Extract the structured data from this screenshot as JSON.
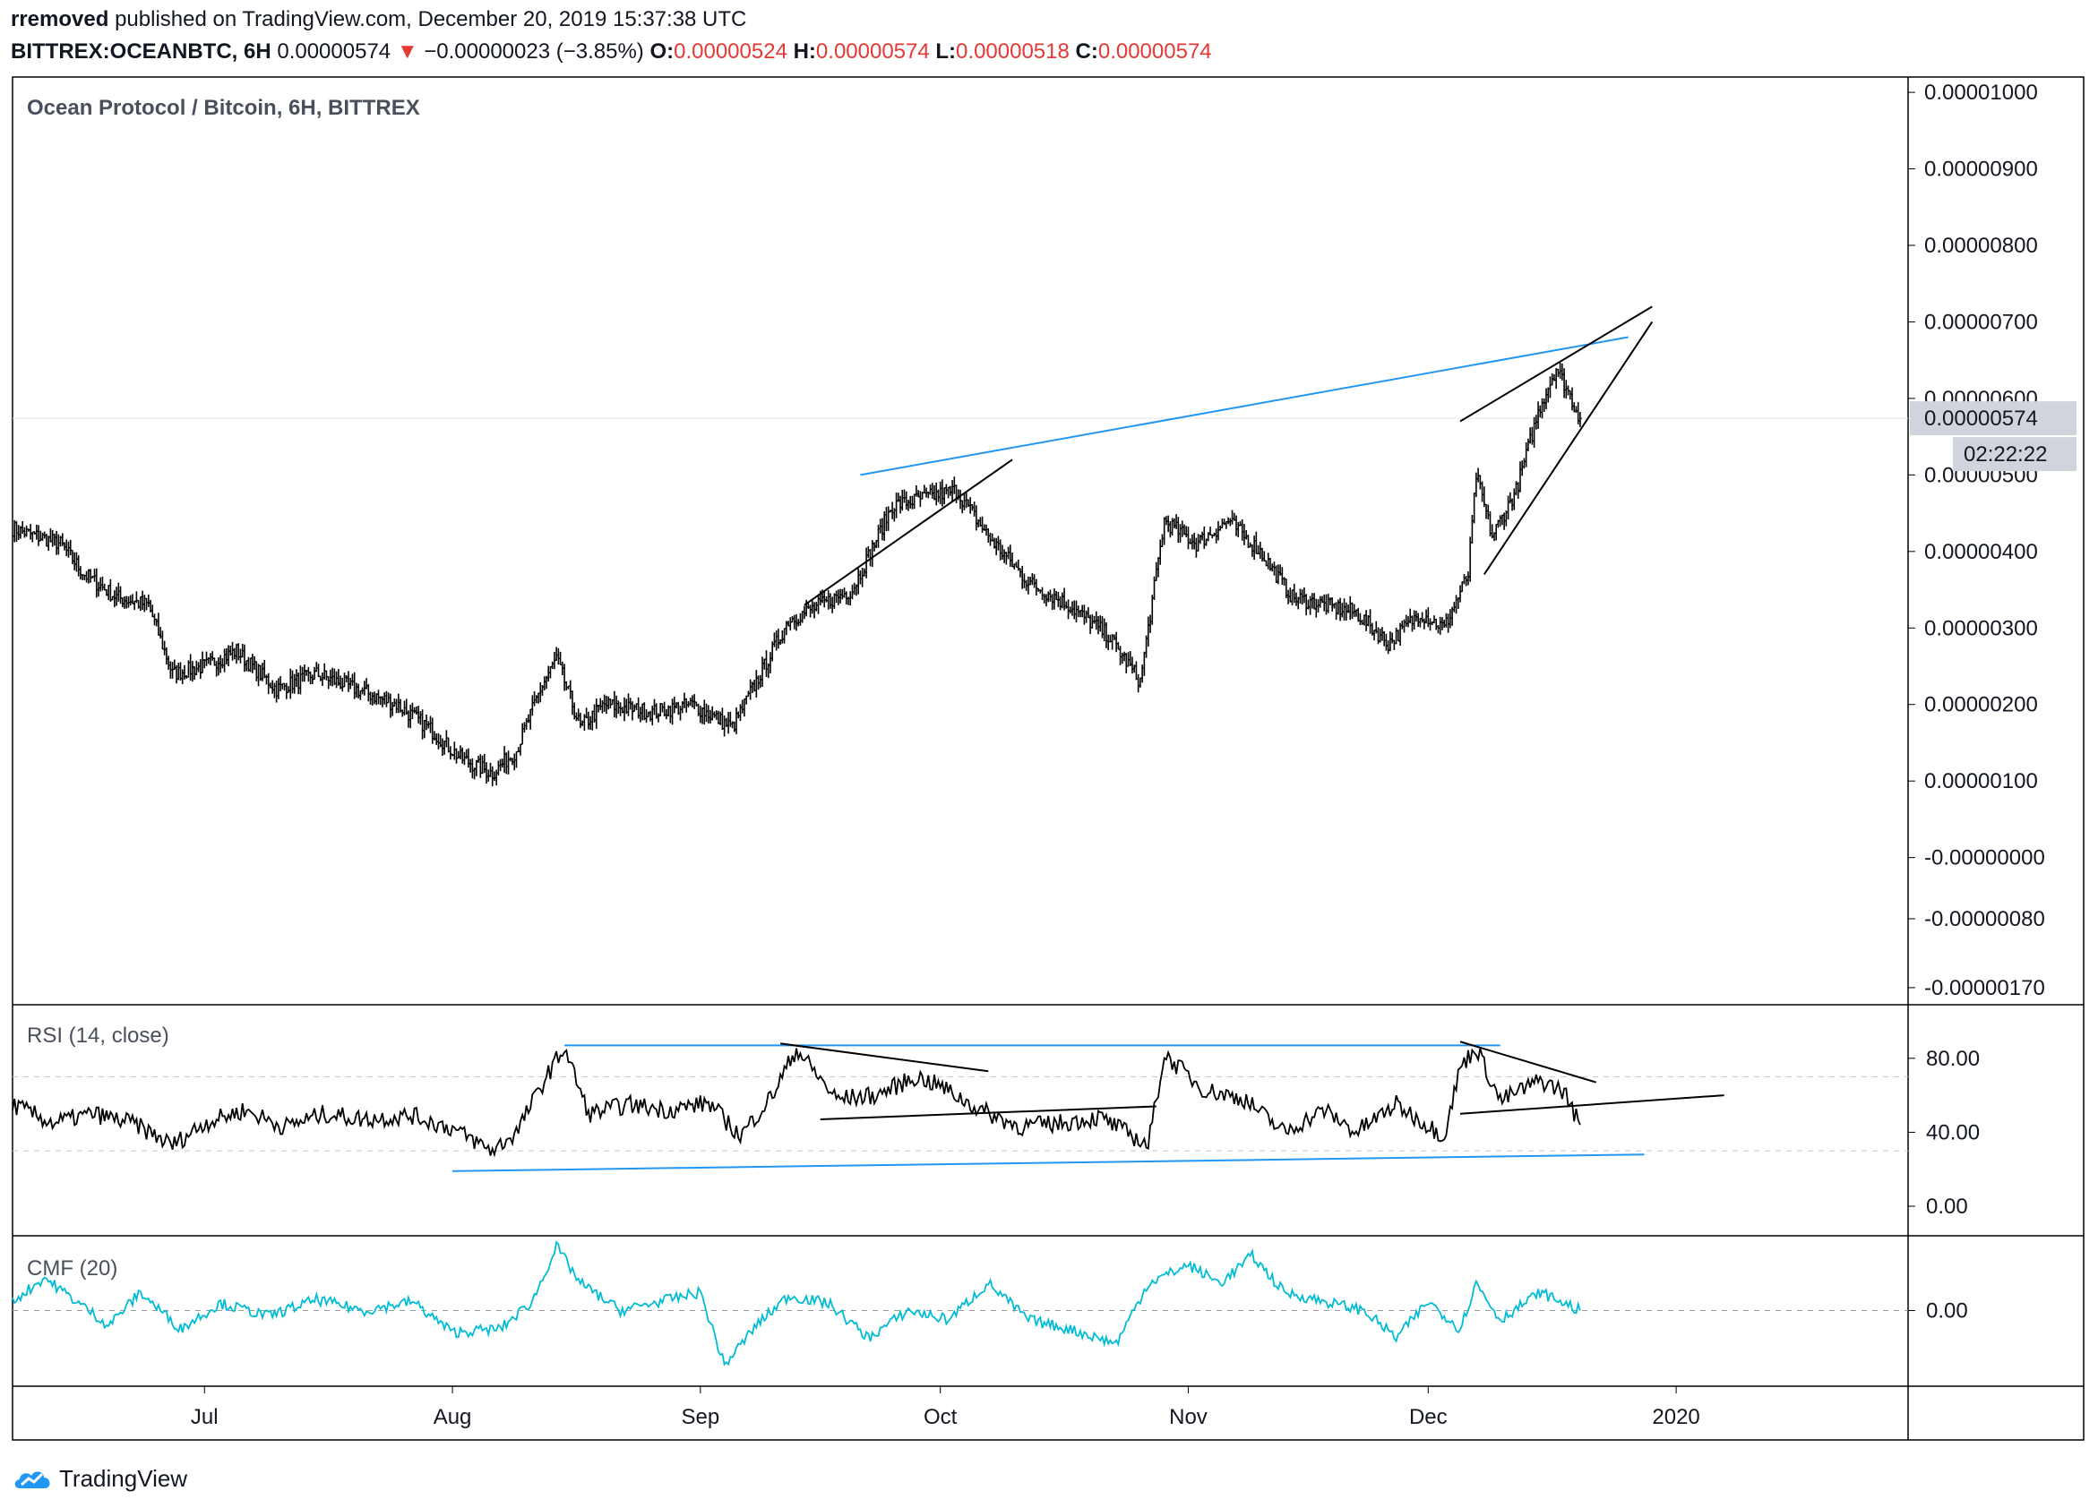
{
  "header": {
    "author": "rremoved",
    "published_text": "published on TradingView.com, December 20, 2019 15:37:38 UTC",
    "symbol": "BITTREX:OCEANBTC, 6H",
    "last": "0.00000574",
    "change": "−0.00000023 (−3.85%)",
    "o_label": "O:",
    "o_value": "0.00000524",
    "h_label": "H:",
    "h_value": "0.00000574",
    "l_label": "L:",
    "l_value": "0.00000518",
    "c_label": "C:",
    "c_value": "0.00000574"
  },
  "footer": {
    "brand": "TradingView"
  },
  "colors": {
    "candle": "#000000",
    "trendline": "#2196f3",
    "cmf": "#00bcd4",
    "down": "#e53935",
    "badge": "#d1d4dc"
  },
  "chart_data": [
    {
      "type": "line",
      "title": "Ocean Protocol / Bitcoin, 6H, BITTREX",
      "y_ticks": [
        "0.00001000",
        "0.00000900",
        "0.00000800",
        "0.00000700",
        "0.00000600",
        "0.00000574",
        "0.00000500",
        "0.00000400",
        "0.00000300",
        "0.00000200",
        "0.00000100",
        "-0.00000000",
        "-0.00000080",
        "-0.00000170"
      ],
      "last_price_label": "0.00000574",
      "countdown_label": "02:22:22",
      "x_ticks": [
        "Jul",
        "Aug",
        "Sep",
        "Oct",
        "Nov",
        "Dec",
        "2020"
      ],
      "ylim": [
        -1.9e-06,
        1.02e-05
      ],
      "price_path": [
        {
          "x": "2019-06-07",
          "y": 4.3e-06
        },
        {
          "x": "2019-06-10",
          "y": 4.2e-06
        },
        {
          "x": "2019-06-13",
          "y": 4.1e-06
        },
        {
          "x": "2019-06-16",
          "y": 3.7e-06
        },
        {
          "x": "2019-06-20",
          "y": 3.4e-06
        },
        {
          "x": "2019-06-24",
          "y": 3.3e-06
        },
        {
          "x": "2019-06-27",
          "y": 2.4e-06
        },
        {
          "x": "2019-07-01",
          "y": 2.5e-06
        },
        {
          "x": "2019-07-05",
          "y": 2.7e-06
        },
        {
          "x": "2019-07-10",
          "y": 2.2e-06
        },
        {
          "x": "2019-07-15",
          "y": 2.4e-06
        },
        {
          "x": "2019-07-20",
          "y": 2.2e-06
        },
        {
          "x": "2019-07-25",
          "y": 2e-06
        },
        {
          "x": "2019-07-29",
          "y": 1.7e-06
        },
        {
          "x": "2019-08-02",
          "y": 1.3e-06
        },
        {
          "x": "2019-08-06",
          "y": 1.1e-06
        },
        {
          "x": "2019-08-09",
          "y": 1.4e-06
        },
        {
          "x": "2019-08-12",
          "y": 2.2e-06
        },
        {
          "x": "2019-08-14",
          "y": 2.6e-06
        },
        {
          "x": "2019-08-17",
          "y": 1.7e-06
        },
        {
          "x": "2019-08-20",
          "y": 2e-06
        },
        {
          "x": "2019-08-26",
          "y": 1.9e-06
        },
        {
          "x": "2019-08-31",
          "y": 2e-06
        },
        {
          "x": "2019-09-05",
          "y": 1.7e-06
        },
        {
          "x": "2019-09-09",
          "y": 2.5e-06
        },
        {
          "x": "2019-09-12",
          "y": 3.1e-06
        },
        {
          "x": "2019-09-16",
          "y": 3.3e-06
        },
        {
          "x": "2019-09-20",
          "y": 3.5e-06
        },
        {
          "x": "2019-09-25",
          "y": 4.6e-06
        },
        {
          "x": "2019-09-29",
          "y": 4.7e-06
        },
        {
          "x": "2019-10-03",
          "y": 4.8e-06
        },
        {
          "x": "2019-10-07",
          "y": 4.2e-06
        },
        {
          "x": "2019-10-12",
          "y": 3.6e-06
        },
        {
          "x": "2019-10-17",
          "y": 3.3e-06
        },
        {
          "x": "2019-10-22",
          "y": 2.9e-06
        },
        {
          "x": "2019-10-26",
          "y": 2.3e-06
        },
        {
          "x": "2019-10-29",
          "y": 4.4e-06
        },
        {
          "x": "2019-11-02",
          "y": 4.1e-06
        },
        {
          "x": "2019-11-06",
          "y": 4.4e-06
        },
        {
          "x": "2019-11-10",
          "y": 4e-06
        },
        {
          "x": "2019-11-14",
          "y": 3.4e-06
        },
        {
          "x": "2019-11-18",
          "y": 3.3e-06
        },
        {
          "x": "2019-11-22",
          "y": 3.2e-06
        },
        {
          "x": "2019-11-26",
          "y": 2.8e-06
        },
        {
          "x": "2019-11-30",
          "y": 3.2e-06
        },
        {
          "x": "2019-12-03",
          "y": 3e-06
        },
        {
          "x": "2019-12-06",
          "y": 3.7e-06
        },
        {
          "x": "2019-12-07",
          "y": 5e-06
        },
        {
          "x": "2019-12-09",
          "y": 4.2e-06
        },
        {
          "x": "2019-12-12",
          "y": 4.8e-06
        },
        {
          "x": "2019-12-15",
          "y": 5.9e-06
        },
        {
          "x": "2019-12-17",
          "y": 6.4e-06
        },
        {
          "x": "2019-12-18",
          "y": 6.2e-06
        },
        {
          "x": "2019-12-20",
          "y": 5.74e-06
        }
      ],
      "drawings": [
        {
          "color": "trendline",
          "from": {
            "x": "2019-09-21",
            "y": 5e-06
          },
          "to": {
            "x": "2019-12-26",
            "y": 6.8e-06
          }
        },
        {
          "color": "candle",
          "from": {
            "x": "2019-09-14",
            "y": 3.3e-06
          },
          "to": {
            "x": "2019-10-10",
            "y": 5.2e-06
          }
        },
        {
          "color": "candle",
          "from": {
            "x": "2019-12-05",
            "y": 5.7e-06
          },
          "to": {
            "x": "2019-12-29",
            "y": 7.2e-06
          }
        },
        {
          "color": "candle",
          "from": {
            "x": "2019-12-08",
            "y": 3.7e-06
          },
          "to": {
            "x": "2019-12-29",
            "y": 7e-06
          }
        }
      ]
    },
    {
      "type": "line",
      "title": "RSI (14, close)",
      "y_ticks": [
        "80.00",
        "40.00",
        "0.00"
      ],
      "ylim": [
        -15,
        108
      ],
      "series": [
        {
          "values": [
            {
              "x": "2019-06-07",
              "y": 55
            },
            {
              "x": "2019-06-12",
              "y": 45
            },
            {
              "x": "2019-06-17",
              "y": 50
            },
            {
              "x": "2019-06-22",
              "y": 45
            },
            {
              "x": "2019-06-27",
              "y": 33
            },
            {
              "x": "2019-07-01",
              "y": 45
            },
            {
              "x": "2019-07-06",
              "y": 52
            },
            {
              "x": "2019-07-11",
              "y": 43
            },
            {
              "x": "2019-07-16",
              "y": 50
            },
            {
              "x": "2019-07-21",
              "y": 47
            },
            {
              "x": "2019-07-27",
              "y": 49
            },
            {
              "x": "2019-08-01",
              "y": 42
            },
            {
              "x": "2019-08-06",
              "y": 30
            },
            {
              "x": "2019-08-09",
              "y": 40
            },
            {
              "x": "2019-08-13",
              "y": 72
            },
            {
              "x": "2019-08-15",
              "y": 86
            },
            {
              "x": "2019-08-18",
              "y": 50
            },
            {
              "x": "2019-08-23",
              "y": 55
            },
            {
              "x": "2019-08-28",
              "y": 52
            },
            {
              "x": "2019-09-02",
              "y": 56
            },
            {
              "x": "2019-09-06",
              "y": 38
            },
            {
              "x": "2019-09-10",
              "y": 60
            },
            {
              "x": "2019-09-13",
              "y": 85
            },
            {
              "x": "2019-09-18",
              "y": 58
            },
            {
              "x": "2019-09-23",
              "y": 60
            },
            {
              "x": "2019-09-28",
              "y": 70
            },
            {
              "x": "2019-10-01",
              "y": 65
            },
            {
              "x": "2019-10-06",
              "y": 52
            },
            {
              "x": "2019-10-11",
              "y": 43
            },
            {
              "x": "2019-10-16",
              "y": 45
            },
            {
              "x": "2019-10-21",
              "y": 48
            },
            {
              "x": "2019-10-27",
              "y": 33
            },
            {
              "x": "2019-10-29",
              "y": 82
            },
            {
              "x": "2019-11-03",
              "y": 63
            },
            {
              "x": "2019-11-08",
              "y": 58
            },
            {
              "x": "2019-11-13",
              "y": 40
            },
            {
              "x": "2019-11-18",
              "y": 52
            },
            {
              "x": "2019-11-22",
              "y": 40
            },
            {
              "x": "2019-11-27",
              "y": 55
            },
            {
              "x": "2019-12-03",
              "y": 38
            },
            {
              "x": "2019-12-05",
              "y": 75
            },
            {
              "x": "2019-12-07",
              "y": 86
            },
            {
              "x": "2019-12-10",
              "y": 57
            },
            {
              "x": "2019-12-15",
              "y": 68
            },
            {
              "x": "2019-12-18",
              "y": 62
            },
            {
              "x": "2019-12-20",
              "y": 44
            }
          ]
        }
      ],
      "drawings": [
        {
          "color": "trendline",
          "from": {
            "x": "2019-08-15",
            "y": 87
          },
          "to": {
            "x": "2019-12-10",
            "y": 87
          }
        },
        {
          "color": "trendline",
          "from": {
            "x": "2019-08-01",
            "y": 19
          },
          "to": {
            "x": "2019-12-28",
            "y": 28
          }
        },
        {
          "color": "candle",
          "from": {
            "x": "2019-09-11",
            "y": 88
          },
          "to": {
            "x": "2019-10-07",
            "y": 73
          }
        },
        {
          "color": "candle",
          "from": {
            "x": "2019-09-16",
            "y": 47
          },
          "to": {
            "x": "2019-10-28",
            "y": 54
          }
        },
        {
          "color": "candle",
          "from": {
            "x": "2019-12-05",
            "y": 89
          },
          "to": {
            "x": "2019-12-22",
            "y": 67
          }
        },
        {
          "color": "candle",
          "from": {
            "x": "2019-12-05",
            "y": 50
          },
          "to": {
            "x": "2020-01-07",
            "y": 60
          }
        }
      ]
    },
    {
      "type": "line",
      "title": "CMF (20)",
      "y_ticks": [
        "0.00"
      ],
      "ylim": [
        -0.4,
        0.4
      ],
      "series": [
        {
          "values": [
            {
              "x": "2019-06-07",
              "y": 0.05
            },
            {
              "x": "2019-06-11",
              "y": 0.18
            },
            {
              "x": "2019-06-15",
              "y": 0.05
            },
            {
              "x": "2019-06-19",
              "y": -0.08
            },
            {
              "x": "2019-06-23",
              "y": 0.1
            },
            {
              "x": "2019-06-28",
              "y": -0.1
            },
            {
              "x": "2019-07-03",
              "y": 0.04
            },
            {
              "x": "2019-07-09",
              "y": -0.03
            },
            {
              "x": "2019-07-15",
              "y": 0.06
            },
            {
              "x": "2019-07-21",
              "y": 0.0
            },
            {
              "x": "2019-07-27",
              "y": 0.05
            },
            {
              "x": "2019-08-01",
              "y": -0.12
            },
            {
              "x": "2019-08-07",
              "y": -0.1
            },
            {
              "x": "2019-08-11",
              "y": 0.05
            },
            {
              "x": "2019-08-14",
              "y": 0.35
            },
            {
              "x": "2019-08-17",
              "y": 0.15
            },
            {
              "x": "2019-08-22",
              "y": 0.0
            },
            {
              "x": "2019-08-27",
              "y": 0.05
            },
            {
              "x": "2019-09-01",
              "y": 0.1
            },
            {
              "x": "2019-09-04",
              "y": -0.3
            },
            {
              "x": "2019-09-08",
              "y": -0.08
            },
            {
              "x": "2019-09-12",
              "y": 0.08
            },
            {
              "x": "2019-09-17",
              "y": 0.04
            },
            {
              "x": "2019-09-22",
              "y": -0.15
            },
            {
              "x": "2019-09-27",
              "y": 0.0
            },
            {
              "x": "2019-10-02",
              "y": -0.05
            },
            {
              "x": "2019-10-07",
              "y": 0.15
            },
            {
              "x": "2019-10-12",
              "y": -0.05
            },
            {
              "x": "2019-10-17",
              "y": -0.1
            },
            {
              "x": "2019-10-23",
              "y": -0.18
            },
            {
              "x": "2019-10-27",
              "y": 0.15
            },
            {
              "x": "2019-11-01",
              "y": 0.25
            },
            {
              "x": "2019-11-05",
              "y": 0.15
            },
            {
              "x": "2019-11-09",
              "y": 0.3
            },
            {
              "x": "2019-11-13",
              "y": 0.1
            },
            {
              "x": "2019-11-18",
              "y": 0.05
            },
            {
              "x": "2019-11-23",
              "y": 0.0
            },
            {
              "x": "2019-11-27",
              "y": -0.15
            },
            {
              "x": "2019-12-01",
              "y": 0.05
            },
            {
              "x": "2019-12-05",
              "y": -0.1
            },
            {
              "x": "2019-12-07",
              "y": 0.15
            },
            {
              "x": "2019-12-10",
              "y": -0.05
            },
            {
              "x": "2019-12-15",
              "y": 0.1
            },
            {
              "x": "2019-12-20",
              "y": 0.0
            }
          ]
        }
      ]
    }
  ]
}
